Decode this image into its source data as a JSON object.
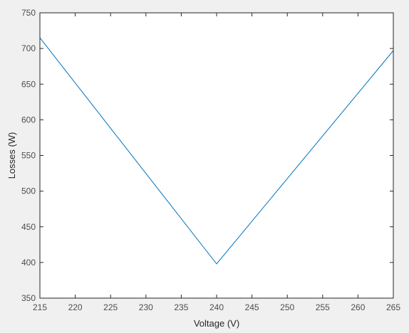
{
  "chart_data": {
    "type": "line",
    "xlabel": "Voltage (V)",
    "ylabel": "Losses (W)",
    "xlim": [
      215,
      265
    ],
    "ylim": [
      350,
      750
    ],
    "xticks": [
      215,
      220,
      225,
      230,
      235,
      240,
      245,
      250,
      255,
      260,
      265
    ],
    "yticks": [
      350,
      400,
      450,
      500,
      550,
      600,
      650,
      700,
      750
    ],
    "grid": false,
    "series": [
      {
        "x": [
          215,
          240,
          265
        ],
        "y": [
          715,
          398,
          697
        ],
        "color": "#0072BD"
      }
    ],
    "colors": {
      "background": "#f0f0f0",
      "axes_background": "#ffffff",
      "axis": "#262626"
    }
  }
}
